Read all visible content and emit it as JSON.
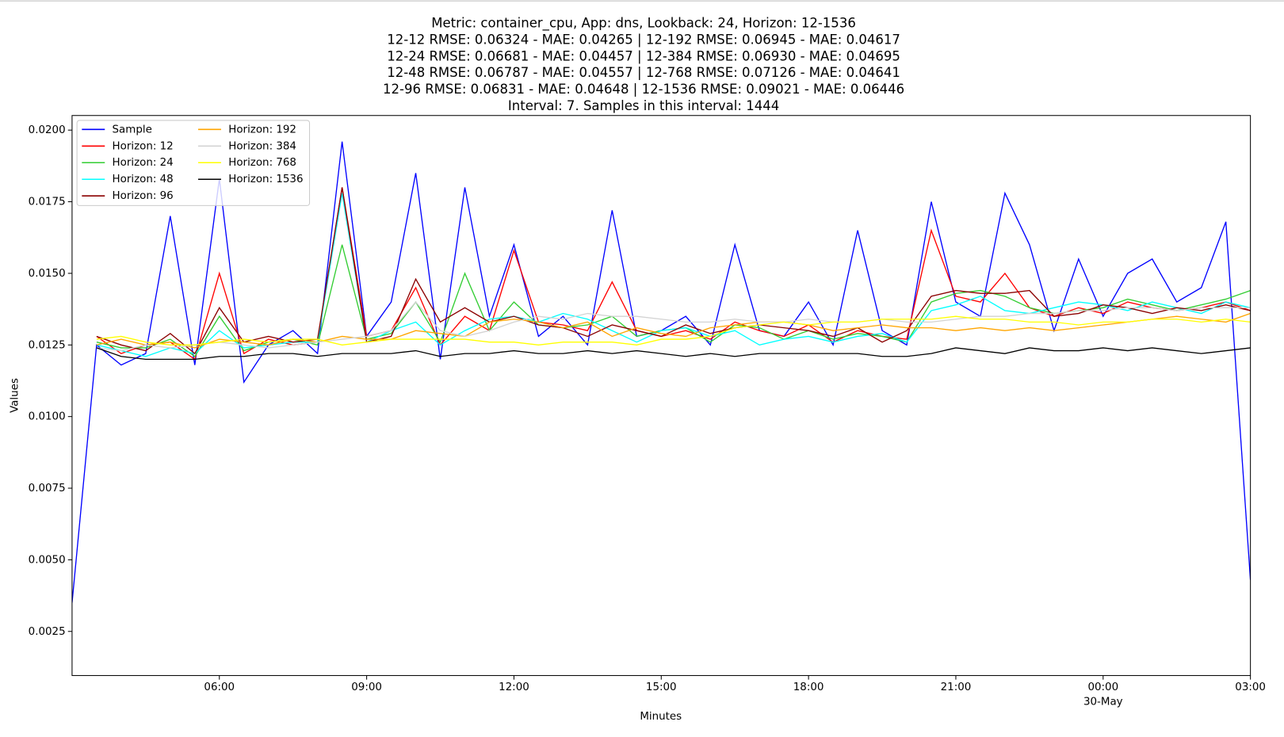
{
  "chart_data": {
    "type": "line",
    "title": [
      "Metric: container_cpu, App: dns, Lookback: 24, Horizon: 12-1536",
      "12-12 RMSE: 0.06324 - MAE: 0.04265 | 12-192 RMSE: 0.06945 - MAE: 0.04617",
      "12-24 RMSE: 0.06681 - MAE: 0.04457 | 12-384 RMSE: 0.06930 - MAE: 0.04695",
      "12-48 RMSE: 0.06787 - MAE: 0.04557 | 12-768 RMSE: 0.07126 - MAE: 0.04641",
      "12-96 RMSE: 0.06831 - MAE: 0.04648 | 12-1536 RMSE: 0.09021 - MAE: 0.06446",
      "Interval: 7. Samples in this interval: 1444"
    ],
    "xlabel": "Minutes",
    "ylabel": "Values",
    "x": [
      3,
      3.5,
      4,
      4.5,
      5,
      5.5,
      6,
      6.5,
      7,
      7.5,
      8,
      8.5,
      9,
      9.5,
      10,
      10.5,
      11,
      11.5,
      12,
      12.5,
      13,
      13.5,
      14,
      14.5,
      15,
      15.5,
      16,
      16.5,
      17,
      17.5,
      18,
      18.5,
      19,
      19.5,
      20,
      20.5,
      21,
      21.5,
      22,
      22.5,
      23,
      23.5,
      24,
      24.5,
      25,
      25.5,
      26,
      26.5,
      27
    ],
    "xlim": [
      3,
      27
    ],
    "xticks": [
      {
        "value": 6,
        "label": "06:00"
      },
      {
        "value": 9,
        "label": "09:00"
      },
      {
        "value": 12,
        "label": "12:00"
      },
      {
        "value": 15,
        "label": "15:00"
      },
      {
        "value": 18,
        "label": "18:00"
      },
      {
        "value": 21,
        "label": "21:00"
      },
      {
        "value": 24,
        "label": "00:00\n30-May"
      },
      {
        "value": 27,
        "label": "03:00"
      }
    ],
    "ylim": [
      0.00096,
      0.02051
    ],
    "yticks": [
      0.0025,
      {
        "value": 0.005,
        "label": "0.0050"
      },
      0.0075,
      {
        "value": 0.01,
        "label": "0.0100"
      },
      0.0125,
      {
        "value": 0.015,
        "label": "0.0150"
      },
      0.0175,
      {
        "value": 0.02,
        "label": "0.0200"
      }
    ],
    "legend": "upper left",
    "series": [
      {
        "name": "Sample",
        "color": "#0000ff",
        "values": [
          0.0035,
          0.0125,
          0.0118,
          0.0122,
          0.017,
          0.0118,
          0.0183,
          0.0112,
          0.0125,
          0.013,
          0.0122,
          0.0196,
          0.0128,
          0.014,
          0.0185,
          0.012,
          0.018,
          0.0135,
          0.016,
          0.0128,
          0.0135,
          0.0125,
          0.0172,
          0.0128,
          0.013,
          0.0135,
          0.0125,
          0.016,
          0.013,
          0.0128,
          0.014,
          0.0125,
          0.0165,
          0.013,
          0.0125,
          0.0175,
          0.014,
          0.0135,
          0.0178,
          0.016,
          0.013,
          0.0155,
          0.0135,
          0.015,
          0.0155,
          0.014,
          0.0145,
          0.0168,
          0.0043
        ]
      },
      {
        "name": "Horizon: 12",
        "color": "#ff0000",
        "values": [
          null,
          0.0128,
          0.0122,
          0.0125,
          0.0126,
          0.012,
          0.015,
          0.0122,
          0.0127,
          0.0125,
          0.0126,
          0.018,
          0.0128,
          0.013,
          0.0145,
          0.0125,
          0.0135,
          0.013,
          0.0158,
          0.0133,
          0.0132,
          0.013,
          0.0147,
          0.013,
          0.0128,
          0.013,
          0.0127,
          0.0133,
          0.013,
          0.0128,
          0.0132,
          0.0126,
          0.013,
          0.0128,
          0.0127,
          0.0165,
          0.0142,
          0.014,
          0.015,
          0.0138,
          0.0135,
          0.0138,
          0.0136,
          0.014,
          0.0138,
          0.0137,
          0.0138,
          0.014,
          0.0137
        ]
      },
      {
        "name": "Horizon: 24",
        "color": "#32cd32",
        "values": [
          null,
          0.0126,
          0.0124,
          0.0124,
          0.0127,
          0.0121,
          0.0135,
          0.0123,
          0.0126,
          0.0127,
          0.0125,
          0.016,
          0.0127,
          0.0129,
          0.014,
          0.0126,
          0.015,
          0.013,
          0.014,
          0.0132,
          0.0131,
          0.0132,
          0.0135,
          0.0128,
          0.013,
          0.0131,
          0.0126,
          0.0132,
          0.0131,
          0.0127,
          0.013,
          0.0127,
          0.0129,
          0.0128,
          0.0126,
          0.014,
          0.0143,
          0.0144,
          0.0142,
          0.0138,
          0.0136,
          0.0137,
          0.0138,
          0.0141,
          0.0139,
          0.0137,
          0.0139,
          0.0141,
          0.0144
        ]
      },
      {
        "name": "Horizon: 48",
        "color": "#00ffff",
        "values": [
          null,
          0.0125,
          0.0123,
          0.0121,
          0.0124,
          0.0122,
          0.013,
          0.0124,
          0.0125,
          0.0126,
          0.0126,
          0.0178,
          0.0126,
          0.013,
          0.0133,
          0.0125,
          0.013,
          0.0134,
          0.0135,
          0.0133,
          0.0136,
          0.0134,
          0.013,
          0.0126,
          0.013,
          0.0131,
          0.0128,
          0.013,
          0.0125,
          0.0127,
          0.0128,
          0.0126,
          0.0128,
          0.0129,
          0.0126,
          0.0137,
          0.0139,
          0.0142,
          0.0137,
          0.0136,
          0.0138,
          0.014,
          0.0139,
          0.0137,
          0.014,
          0.0138,
          0.0136,
          0.014,
          0.0138
        ]
      },
      {
        "name": "Horizon: 96",
        "color": "#8b0000",
        "values": [
          null,
          0.0128,
          0.0125,
          0.0123,
          0.0129,
          0.0122,
          0.0138,
          0.0126,
          0.0128,
          0.0126,
          0.0127,
          0.018,
          0.0126,
          0.0128,
          0.0148,
          0.0133,
          0.0138,
          0.0133,
          0.0135,
          0.0132,
          0.0131,
          0.0128,
          0.0132,
          0.013,
          0.0128,
          0.0132,
          0.0129,
          0.0131,
          0.0132,
          0.0131,
          0.013,
          0.0128,
          0.0131,
          0.0126,
          0.013,
          0.0142,
          0.0144,
          0.0143,
          0.0143,
          0.0144,
          0.0135,
          0.0136,
          0.0139,
          0.0138,
          0.0136,
          0.0138,
          0.0137,
          0.0139,
          0.0137
        ]
      },
      {
        "name": "Horizon: 192",
        "color": "#ffa500",
        "values": [
          null,
          0.0125,
          0.0127,
          0.0125,
          0.0126,
          0.0124,
          0.0127,
          0.0126,
          0.0125,
          0.0127,
          0.0126,
          0.0128,
          0.0127,
          0.0127,
          0.013,
          0.0129,
          0.0128,
          0.0133,
          0.0134,
          0.0133,
          0.0131,
          0.0133,
          0.0128,
          0.0131,
          0.0129,
          0.0128,
          0.0131,
          0.0132,
          0.0133,
          0.0133,
          0.0132,
          0.013,
          0.0131,
          0.0132,
          0.0131,
          0.0131,
          0.013,
          0.0131,
          0.013,
          0.0131,
          0.013,
          0.0131,
          0.0132,
          0.0133,
          0.0134,
          0.0135,
          0.0134,
          0.0133,
          0.0136
        ]
      },
      {
        "name": "Horizon: 384",
        "color": "#d3d3d3",
        "values": [
          null,
          0.0124,
          0.0123,
          0.0125,
          0.0124,
          0.0125,
          0.0126,
          0.0125,
          0.0124,
          0.0125,
          0.0126,
          0.0127,
          0.0128,
          0.013,
          0.014,
          0.013,
          0.0128,
          0.013,
          0.0133,
          0.0135,
          0.0134,
          0.0136,
          0.0135,
          0.0135,
          0.0134,
          0.0133,
          0.0133,
          0.0134,
          0.0133,
          0.0133,
          0.0134,
          0.0133,
          0.0133,
          0.0134,
          0.0133,
          0.0133,
          0.0134,
          0.0135,
          0.0135,
          0.0136,
          0.0136,
          0.0137,
          0.0137,
          0.0138,
          0.0138,
          0.0137,
          0.0138,
          0.0138,
          0.0138
        ]
      },
      {
        "name": "Horizon: 768",
        "color": "#ffff00",
        "values": [
          null,
          0.0127,
          0.0128,
          0.0126,
          0.0125,
          0.0125,
          0.0126,
          0.0127,
          0.0126,
          0.0127,
          0.0127,
          0.0125,
          0.0126,
          0.0127,
          0.0127,
          0.0127,
          0.0127,
          0.0126,
          0.0126,
          0.0125,
          0.0126,
          0.0126,
          0.0126,
          0.0125,
          0.0127,
          0.0127,
          0.0128,
          0.0131,
          0.0132,
          0.0133,
          0.0132,
          0.0133,
          0.0133,
          0.0134,
          0.0134,
          0.0134,
          0.0135,
          0.0134,
          0.0134,
          0.0133,
          0.0133,
          0.0132,
          0.0133,
          0.0133,
          0.0134,
          0.0134,
          0.0133,
          0.0134,
          0.0133
        ]
      },
      {
        "name": "Horizon: 1536",
        "color": "#000000",
        "values": [
          null,
          0.0124,
          0.0121,
          0.012,
          0.012,
          0.012,
          0.0121,
          0.0121,
          0.0122,
          0.0122,
          0.0121,
          0.0122,
          0.0122,
          0.0122,
          0.0123,
          0.0121,
          0.0122,
          0.0122,
          0.0123,
          0.0122,
          0.0122,
          0.0123,
          0.0122,
          0.0123,
          0.0122,
          0.0121,
          0.0122,
          0.0121,
          0.0122,
          0.0122,
          0.0122,
          0.0122,
          0.0122,
          0.0121,
          0.0121,
          0.0122,
          0.0124,
          0.0123,
          0.0122,
          0.0124,
          0.0123,
          0.0123,
          0.0124,
          0.0123,
          0.0124,
          0.0123,
          0.0122,
          0.0123,
          0.0124
        ]
      }
    ]
  }
}
